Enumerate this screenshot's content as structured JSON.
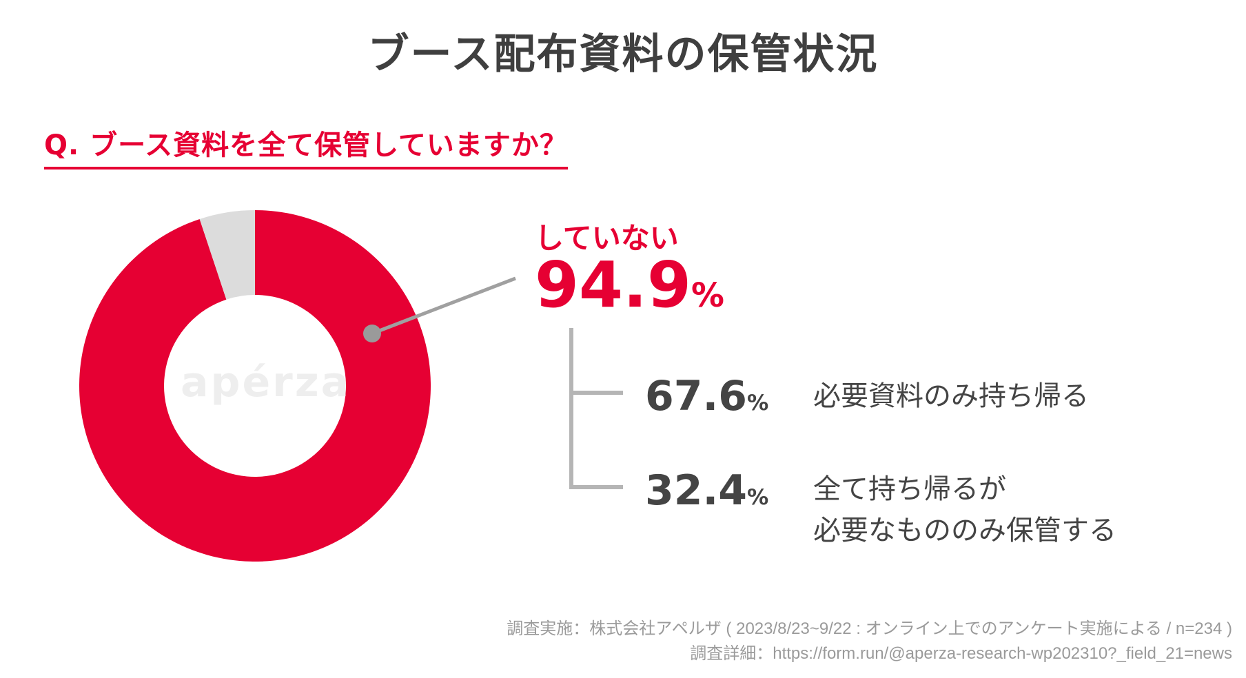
{
  "title": "ブース配布資料の保管状況",
  "question": "Q. ブース資料を全て保管していますか？",
  "watermark": "apérza",
  "chart_data": {
    "type": "pie",
    "donut": true,
    "slices": [
      {
        "label": "していない",
        "value": 94.9,
        "color": "#e60033"
      },
      {
        "label": "",
        "value": 5.1,
        "color": "#dcdcdc"
      }
    ],
    "main_callout": {
      "label": "していない",
      "value": "94.9",
      "unit": "%"
    },
    "breakdown": [
      {
        "value": "67.6",
        "unit": "%",
        "label": "必要資料のみ持ち帰る"
      },
      {
        "value": "32.4",
        "unit": "%",
        "label": "全て持ち帰るが\n必要なもののみ保管する"
      }
    ]
  },
  "footer": {
    "line1": "調査実施：株式会社アペルザ ( 2023/8/23~9/22 : オンライン上でのアンケート実施による / n=234 )",
    "line2": "調査詳細：https://form.run/@aperza-research-wp202310?_field_21=news"
  },
  "colors": {
    "accent": "#e60033",
    "gray": "#dcdcdc",
    "text": "#444444"
  }
}
